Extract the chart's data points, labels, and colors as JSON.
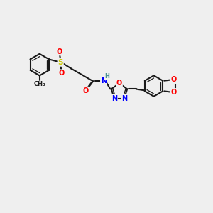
{
  "bg_color": "#efefef",
  "bond_color": "#1a1a1a",
  "atom_colors": {
    "O": "#ff0000",
    "N": "#0000ff",
    "S": "#cccc00",
    "C": "#1a1a1a",
    "H": "#4a9090"
  }
}
